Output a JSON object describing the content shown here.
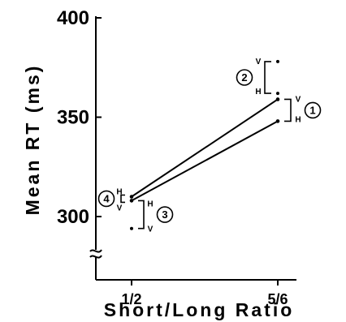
{
  "chart_data": {
    "type": "line",
    "title": "",
    "xlabel": "Short/Long Ratio",
    "ylabel": "Mean RT (ms)",
    "categories": [
      "1/2",
      "5/6"
    ],
    "ylim": [
      275,
      400
    ],
    "yticks": [
      "400",
      "350",
      "300"
    ],
    "ytick_values": [
      400,
      350,
      300
    ],
    "axis_break": true,
    "grid": false,
    "series": [
      {
        "values": [
          310,
          359
        ]
      },
      {
        "values": [
          308,
          348
        ]
      }
    ],
    "annotations": [
      {
        "number": "1",
        "category": "5/6",
        "low": 348,
        "high": 359,
        "low_label": "H",
        "high_label": "V"
      },
      {
        "number": "2",
        "category": "5/6",
        "low": 362,
        "high": 378,
        "low_label": "H",
        "high_label": "V"
      },
      {
        "number": "3",
        "category": "1/2",
        "low": 294,
        "high": 308,
        "low_label": "V",
        "high_label": "H"
      },
      {
        "number": "4",
        "category": "1/2",
        "low": 308,
        "high": 310,
        "low_label": "V",
        "high_label": "H"
      }
    ]
  }
}
